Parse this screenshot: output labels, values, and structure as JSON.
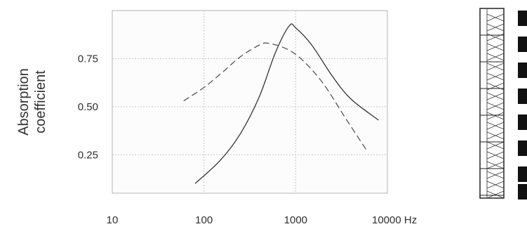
{
  "chart_data": {
    "type": "line",
    "ylabel": [
      "Absorption",
      "coefficient"
    ],
    "x_scale": "log",
    "xlim": [
      10,
      10000
    ],
    "x_ticks": [
      10,
      100,
      1000,
      10000
    ],
    "x_tick_labels": [
      "10",
      "100",
      "1000",
      "10000 Hz"
    ],
    "ylim": [
      0.05,
      1.0
    ],
    "y_ticks": [
      0.25,
      0.5,
      0.75
    ],
    "y_tick_labels": [
      "0.25",
      "0.50",
      "0.75"
    ],
    "grid": true,
    "series": [
      {
        "line_style": "solid",
        "color": "#333333",
        "points": [
          [
            80,
            0.1
          ],
          [
            150,
            0.22
          ],
          [
            250,
            0.36
          ],
          [
            400,
            0.55
          ],
          [
            600,
            0.78
          ],
          [
            850,
            0.92
          ],
          [
            1000,
            0.91
          ],
          [
            1500,
            0.82
          ],
          [
            2500,
            0.66
          ],
          [
            4000,
            0.54
          ],
          [
            8000,
            0.43
          ]
        ]
      },
      {
        "line_style": "dashed",
        "color": "#555555",
        "points": [
          [
            60,
            0.53
          ],
          [
            100,
            0.6
          ],
          [
            160,
            0.68
          ],
          [
            250,
            0.76
          ],
          [
            400,
            0.82
          ],
          [
            500,
            0.83
          ],
          [
            800,
            0.8
          ],
          [
            1200,
            0.74
          ],
          [
            2000,
            0.62
          ],
          [
            3500,
            0.44
          ],
          [
            6000,
            0.27
          ]
        ]
      }
    ]
  },
  "panel_diagram": {
    "icon": "perforated-panel-cross-section"
  }
}
